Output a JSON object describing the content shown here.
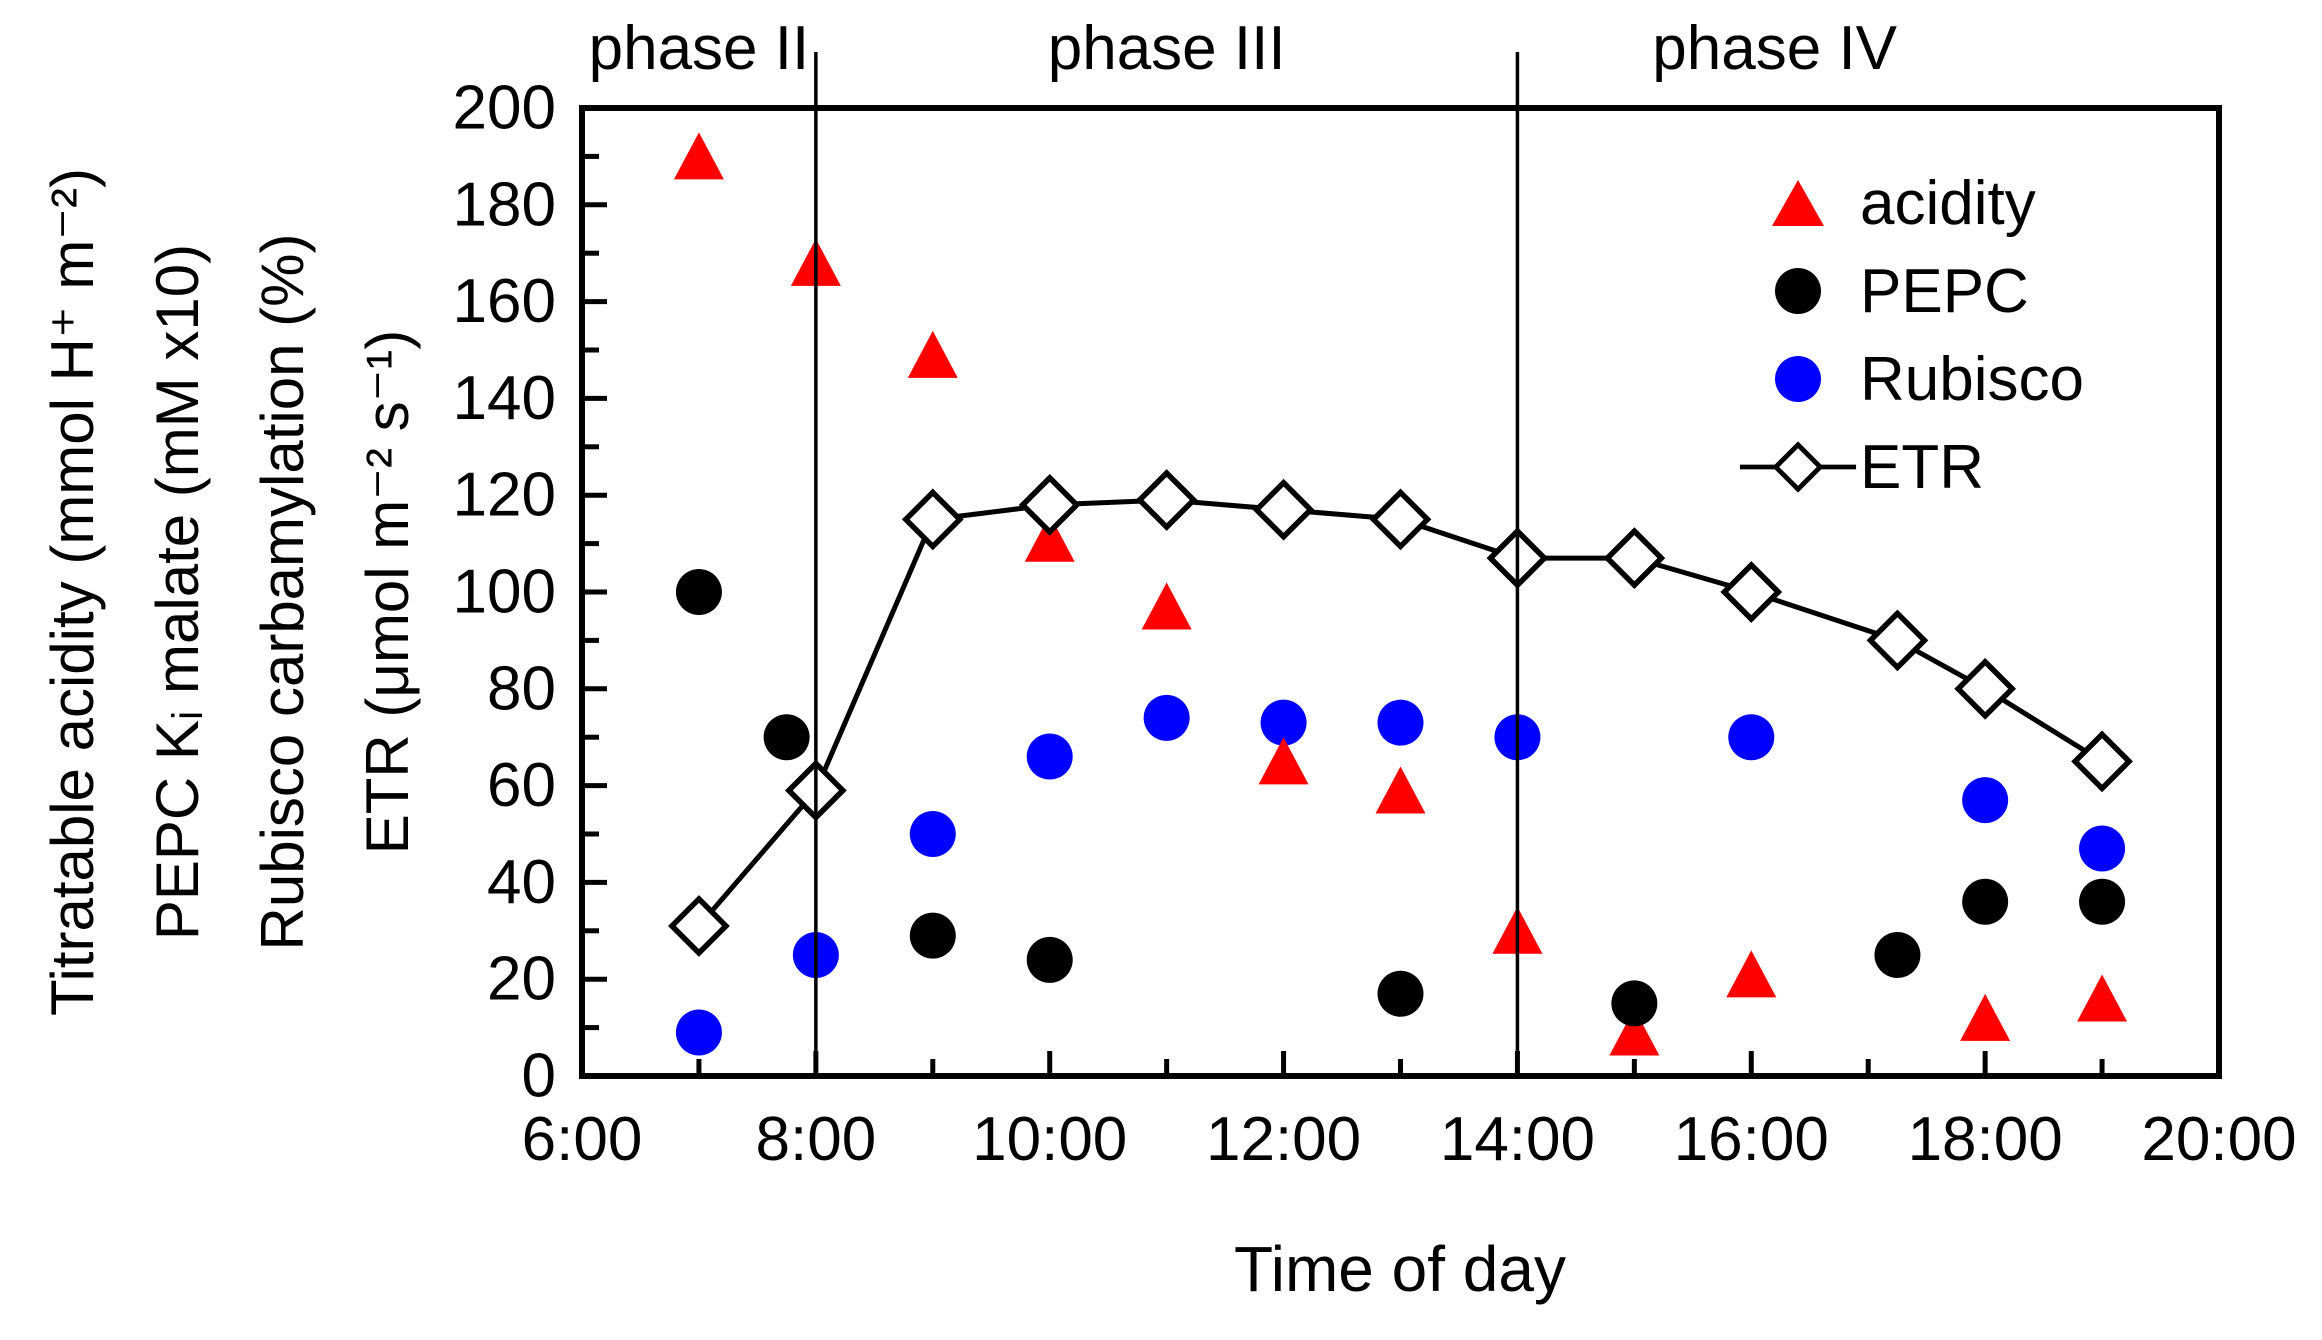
{
  "chart_data": {
    "type": "scatter",
    "title": "",
    "xlabel": "Time of day",
    "ylabel_lines": [
      "Titratable acidity (mmol H⁺ m⁻²)",
      "PEPC Kᵢ malate (mM x10)",
      "Rubisco carbamylation (%)",
      "ETR (μmol m⁻² s⁻¹)"
    ],
    "x_axis": {
      "range_hours": [
        6,
        20
      ],
      "major_tick_every_hours": 2,
      "minor_tick_every_hours": 1,
      "ticks": [
        {
          "hour": 6,
          "label": "6:00"
        },
        {
          "hour": 8,
          "label": "8:00"
        },
        {
          "hour": 10,
          "label": "10:00"
        },
        {
          "hour": 12,
          "label": "12:00"
        },
        {
          "hour": 14,
          "label": "14:00"
        },
        {
          "hour": 16,
          "label": "16:00"
        },
        {
          "hour": 18,
          "label": "18:00"
        },
        {
          "hour": 20,
          "label": "20:00"
        }
      ]
    },
    "y_axis": {
      "range": [
        0,
        200
      ],
      "major_tick_step": 20,
      "minor_tick_step": 10
    },
    "grid": false,
    "phase_boundaries_hours": [
      8,
      14
    ],
    "phase_labels": [
      {
        "text": "phase II",
        "center_hour": 7.0
      },
      {
        "text": "phase III",
        "center_hour": 11.0
      },
      {
        "text": "phase IV",
        "center_hour": 16.2
      }
    ],
    "legend_position": "upper right",
    "series": [
      {
        "name": "acidity",
        "marker": "triangle",
        "color": "#ff0000",
        "connected": false,
        "points": [
          [
            7,
            190
          ],
          [
            8,
            168
          ],
          [
            9,
            149
          ],
          [
            10,
            111
          ],
          [
            11,
            97
          ],
          [
            12,
            65
          ],
          [
            13,
            59
          ],
          [
            14,
            30
          ],
          [
            15,
            9
          ],
          [
            16,
            21
          ],
          [
            18,
            12
          ],
          [
            19,
            16
          ]
        ]
      },
      {
        "name": "PEPC",
        "marker": "circle",
        "color": "#000000",
        "connected": false,
        "points": [
          [
            7,
            100
          ],
          [
            7.75,
            70
          ],
          [
            9,
            29
          ],
          [
            10,
            24
          ],
          [
            13,
            17
          ],
          [
            15,
            15
          ],
          [
            17.25,
            25
          ],
          [
            18,
            36
          ],
          [
            19,
            36
          ]
        ]
      },
      {
        "name": "Rubisco",
        "marker": "circle",
        "color": "#0000ff",
        "connected": false,
        "points": [
          [
            7,
            9
          ],
          [
            8,
            25
          ],
          [
            9,
            50
          ],
          [
            10,
            66
          ],
          [
            11,
            74
          ],
          [
            12,
            73
          ],
          [
            13,
            73
          ],
          [
            14,
            70
          ],
          [
            16,
            70
          ],
          [
            18,
            57
          ],
          [
            19,
            47
          ]
        ]
      },
      {
        "name": "ETR",
        "marker": "diamond",
        "color": "#000000",
        "connected": true,
        "points": [
          [
            7,
            31
          ],
          [
            8,
            59
          ],
          [
            9,
            115
          ],
          [
            10,
            118
          ],
          [
            11,
            119
          ],
          [
            12,
            117
          ],
          [
            13,
            115
          ],
          [
            14,
            107
          ],
          [
            15,
            107
          ],
          [
            16,
            100
          ],
          [
            17.25,
            90
          ],
          [
            18,
            80
          ],
          [
            19,
            65
          ]
        ]
      }
    ],
    "draw_order": [
      "Rubisco",
      "acidity",
      "PEPC",
      "ETR"
    ]
  }
}
